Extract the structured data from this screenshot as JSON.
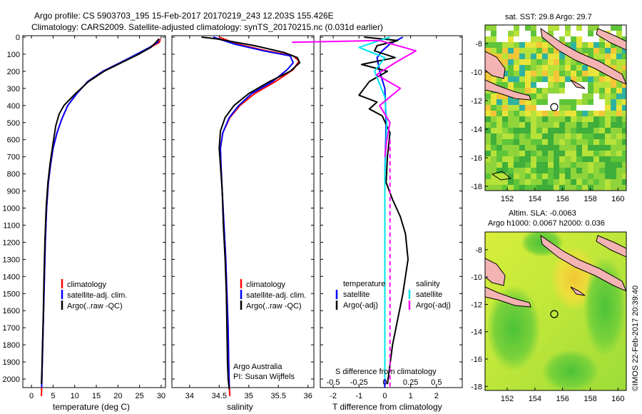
{
  "header": {
    "line1": "Argo profile: CS 5903703_195 15-Feb-2017 20170219_243 12.203S 155.426E",
    "line2": "Climatology: CARS2009. Satellite-adjusted climatology: synTS_20170215.nc (0.031d earlier)"
  },
  "colors": {
    "climatology": "#ff0000",
    "satellite": "#0000ff",
    "argo": "#000000",
    "sat_sal": "#00e5ee",
    "argo_sal": "#ff00ff"
  },
  "chart_data": [
    {
      "type": "line",
      "name": "temperature-profile",
      "xlabel": "temperature (deg C)",
      "ylabel": "",
      "xlim": [
        -2,
        31
      ],
      "ylim": [
        2100,
        0
      ],
      "xticks": [
        "0",
        "5",
        "10",
        "15",
        "20",
        "25",
        "30"
      ],
      "xtick_values": [
        0,
        5,
        10,
        15,
        20,
        25,
        30
      ],
      "yticks": [
        "0",
        "100",
        "200",
        "300",
        "400",
        "500",
        "600",
        "700",
        "800",
        "900",
        "1000",
        "1100",
        "1200",
        "1300",
        "1400",
        "1500",
        "1600",
        "1700",
        "1800",
        "1900",
        "2000"
      ],
      "ytick_values": [
        0,
        100,
        200,
        300,
        400,
        500,
        600,
        700,
        800,
        900,
        1000,
        1100,
        1200,
        1300,
        1400,
        1500,
        1600,
        1700,
        1800,
        1900,
        2000
      ],
      "legend": [
        "climatology",
        "satellite-adj. clim.",
        "Argo(..raw -QC)"
      ],
      "series": [
        {
          "name": "climatology",
          "color": "#ff0000",
          "x": [
            29.8,
            29.6,
            27.5,
            24.5,
            20.5,
            16.5,
            13.0,
            10.5,
            8.4,
            7.0,
            5.9,
            5.0,
            4.4,
            3.9,
            3.5,
            3.2,
            3.0,
            2.8,
            2.6,
            2.45,
            2.35,
            2.3
          ],
          "y": [
            10,
            30,
            60,
            100,
            150,
            200,
            260,
            330,
            400,
            480,
            560,
            650,
            750,
            850,
            1000,
            1200,
            1400,
            1600,
            1800,
            1950,
            2050,
            2100
          ]
        },
        {
          "name": "satellite-adj. clim.",
          "color": "#0000ff",
          "x": [
            29.4,
            29.2,
            27.3,
            24.3,
            20.5,
            16.5,
            13.0,
            10.5,
            8.4,
            7.0,
            5.9,
            5.0,
            4.4,
            3.9,
            3.5,
            3.2,
            3.0,
            2.8,
            2.6,
            2.45,
            2.35
          ],
          "y": [
            10,
            30,
            60,
            100,
            150,
            200,
            260,
            330,
            400,
            480,
            560,
            650,
            750,
            850,
            1000,
            1200,
            1400,
            1600,
            1800,
            1950,
            2050
          ]
        },
        {
          "name": "Argo(..raw -QC)",
          "color": "#000000",
          "x": [
            29.5,
            28.8,
            27.6,
            24.8,
            20.8,
            16.8,
            13.2,
            10.2,
            7.5,
            6.4,
            5.6,
            5.0,
            4.3,
            3.8,
            3.4,
            3.1,
            2.9,
            2.75,
            2.55,
            2.4,
            2.3
          ],
          "y": [
            10,
            30,
            60,
            100,
            150,
            200,
            260,
            330,
            400,
            450,
            520,
            620,
            740,
            850,
            1000,
            1200,
            1400,
            1600,
            1800,
            1950,
            2030
          ]
        }
      ]
    },
    {
      "type": "line",
      "name": "salinity-profile",
      "xlabel": "salinity",
      "xlim": [
        33.7,
        36.1
      ],
      "ylim": [
        2100,
        0
      ],
      "xticks": [
        "34",
        "34.5",
        "35",
        "35.5",
        "36"
      ],
      "xtick_values": [
        34,
        34.5,
        35,
        35.5,
        36
      ],
      "legend": [
        "climatology",
        "satellite-adj. clim.",
        "Argo(..raw -QC)"
      ],
      "annotation": [
        "Argo Australia",
        "PI: Susan Wijffels"
      ],
      "series": [
        {
          "name": "climatology",
          "color": "#ff0000",
          "x": [
            34.5,
            34.8,
            35.3,
            35.75,
            35.85,
            35.75,
            35.45,
            35.1,
            34.85,
            34.68,
            34.56,
            34.52,
            34.53,
            34.55,
            34.58,
            34.61,
            34.63,
            34.65,
            34.66,
            34.67,
            34.68
          ],
          "y": [
            0,
            40,
            80,
            110,
            140,
            190,
            260,
            330,
            400,
            470,
            560,
            650,
            750,
            900,
            1100,
            1300,
            1500,
            1700,
            1900,
            2050,
            2100
          ]
        },
        {
          "name": "satellite-adj. clim.",
          "color": "#0000ff",
          "x": [
            34.4,
            34.75,
            35.25,
            35.7,
            35.75,
            35.65,
            35.4,
            35.05,
            34.83,
            34.67,
            34.56,
            34.52,
            34.53,
            34.55,
            34.58,
            34.61,
            34.63,
            34.65,
            34.66,
            34.67
          ],
          "y": [
            0,
            40,
            80,
            110,
            150,
            190,
            260,
            330,
            400,
            470,
            560,
            650,
            750,
            900,
            1100,
            1300,
            1500,
            1700,
            1900,
            2050
          ]
        },
        {
          "name": "Argo(..raw -QC)",
          "color": "#000000",
          "x": [
            34.2,
            34.45,
            35.1,
            35.6,
            35.82,
            35.86,
            35.7,
            35.35,
            35.0,
            34.75,
            34.6,
            34.52,
            34.5,
            34.52,
            34.55,
            34.57,
            34.6,
            34.62,
            34.63,
            34.64,
            34.65,
            34.67
          ],
          "y": [
            0,
            10,
            50,
            90,
            120,
            150,
            200,
            260,
            330,
            400,
            470,
            550,
            650,
            750,
            900,
            1100,
            1300,
            1500,
            1700,
            1900,
            2000,
            2060
          ]
        }
      ]
    },
    {
      "type": "line",
      "name": "difference-profile",
      "xlabel": "T difference from climatology",
      "xlabel_top": "S difference from climatology",
      "xlim": [
        -2.5,
        3
      ],
      "ylim": [
        2100,
        0
      ],
      "xticks": [
        "-2",
        "-1",
        "0",
        "1",
        "2"
      ],
      "xtick_values": [
        -2,
        -1,
        0,
        1,
        2
      ],
      "sticks": [
        "-0.5",
        "-0.25",
        "0",
        "0.25",
        "0.5"
      ],
      "stick_values": [
        -0.5,
        -0.25,
        0,
        0.25,
        0.5
      ],
      "legend_left_title": "temperature",
      "legend_left": [
        "satellite",
        "Argo(-adj)"
      ],
      "legend_right_title": "salinity",
      "legend_right": [
        "satellite",
        "Argo(-adj)"
      ],
      "series": [
        {
          "name": "temperature satellite",
          "color": "#0000ff",
          "x": [
            0.7,
            0.2,
            -0.1,
            -0.3,
            -0.2,
            0.0,
            0.05,
            0.0,
            0.0,
            0.0,
            0.0
          ],
          "y": [
            0,
            40,
            80,
            120,
            200,
            300,
            500,
            800,
            1200,
            1600,
            2050
          ]
        },
        {
          "name": "temperature Argo(-adj)",
          "color": "#000000",
          "x": [
            -0.8,
            0.5,
            -0.3,
            -0.4,
            0.4,
            -0.9,
            0.1,
            -0.6,
            -0.8,
            -1.0,
            -0.3,
            -0.6,
            -0.1,
            0.2,
            0.1,
            0.05,
            0.3,
            0.6,
            0.8,
            0.9,
            0.7,
            0.3,
            0.1
          ],
          "y": [
            0,
            20,
            50,
            80,
            120,
            160,
            200,
            260,
            300,
            340,
            380,
            420,
            460,
            560,
            700,
            850,
            950,
            1050,
            1150,
            1300,
            1500,
            1800,
            2030
          ]
        },
        {
          "name": "salinity satellite",
          "color": "#00e5ee",
          "x": [
            0.05,
            -0.25,
            0.0,
            -0.1,
            0.0,
            0.02,
            0.0,
            0.0,
            0.0
          ],
          "y": [
            0,
            60,
            120,
            200,
            350,
            500,
            800,
            1400,
            2000
          ]
        },
        {
          "name": "salinity Argo(-adj)",
          "color": "#ff00ff",
          "x": [
            -0.9,
            -0.05,
            0.3,
            0.1,
            -0.08,
            0.15,
            -0.05,
            0.05,
            0.02,
            0.0
          ],
          "y": [
            30,
            20,
            80,
            150,
            220,
            300,
            400,
            500,
            600,
            700
          ]
        },
        {
          "name": "salinity Argo(-adj) dashed",
          "color": "#ff00ff",
          "dashed": true,
          "x": [
            0.05,
            0.05,
            0.05,
            0.05
          ],
          "y": [
            600,
            1000,
            1500,
            2050
          ]
        }
      ]
    },
    {
      "type": "heatmap",
      "name": "sst-map",
      "title": "sat. SST: 29.8  Argo: 29.7",
      "xticks": [
        "152",
        "154",
        "156",
        "158",
        "160"
      ],
      "xtick_values": [
        152,
        154,
        156,
        158,
        160
      ],
      "yticks": [
        "-8",
        "-10",
        "-12",
        "-14",
        "-16",
        "-18"
      ],
      "ytick_values": [
        -8,
        -10,
        -12,
        -14,
        -16,
        -18
      ],
      "xlim": [
        150.4,
        160.6
      ],
      "ylim": [
        -18.3,
        -6.7
      ],
      "marker": {
        "lon": 155.426,
        "lat": -12.203
      }
    },
    {
      "type": "heatmap",
      "name": "sla-map",
      "title": "Altim. SLA: -0.0063",
      "subtitle": "Argo h1000: 0.0067  h2000: 0.036",
      "xticks": [
        "152",
        "154",
        "156",
        "158",
        "160"
      ],
      "xtick_values": [
        152,
        154,
        156,
        158,
        160
      ],
      "yticks": [
        "-8",
        "-10",
        "-12",
        "-14",
        "-16",
        "-18"
      ],
      "ytick_values": [
        -8,
        -10,
        -12,
        -14,
        -16,
        -18
      ],
      "xlim": [
        150.4,
        160.6
      ],
      "ylim": [
        -18.3,
        -6.7
      ],
      "marker": {
        "lon": 155.426,
        "lat": -12.203
      }
    }
  ],
  "footer": {
    "credit": "©IMOS 22-Feb-2017 20:39:40"
  }
}
